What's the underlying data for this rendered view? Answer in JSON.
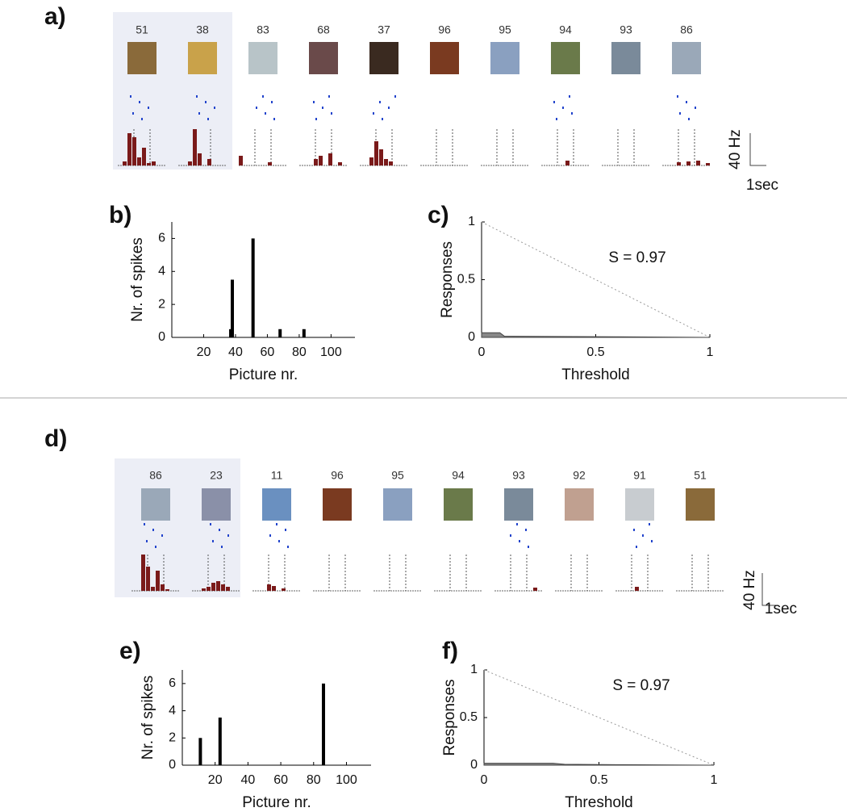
{
  "chart_data": [
    {
      "type": "raster",
      "label": "a)",
      "pictures": [
        51,
        38,
        83,
        68,
        37,
        96,
        95,
        94,
        93,
        86
      ],
      "histograms": [
        [
          0,
          5,
          40,
          35,
          10,
          22,
          3,
          5,
          0,
          0
        ],
        [
          0,
          0,
          5,
          45,
          15,
          0,
          8,
          0,
          0,
          0
        ],
        [
          12,
          0,
          0,
          0,
          0,
          0,
          4,
          0,
          0,
          0
        ],
        [
          0,
          0,
          0,
          8,
          12,
          0,
          15,
          0,
          4,
          0
        ],
        [
          0,
          0,
          10,
          30,
          20,
          8,
          5,
          0,
          0,
          0
        ],
        [
          0,
          0,
          0,
          0,
          0,
          0,
          0,
          0,
          0,
          0
        ],
        [
          0,
          0,
          0,
          0,
          0,
          0,
          0,
          0,
          0,
          0
        ],
        [
          0,
          0,
          0,
          0,
          0,
          6,
          0,
          0,
          0,
          0
        ],
        [
          0,
          0,
          0,
          0,
          0,
          0,
          0,
          0,
          0,
          0
        ],
        [
          0,
          0,
          0,
          4,
          0,
          5,
          0,
          6,
          0,
          3
        ]
      ],
      "scale_y": "40 Hz",
      "scale_x": "1sec",
      "color": "#7a1a1a",
      "highlight": [
        0,
        1
      ]
    },
    {
      "type": "bar",
      "label": "b)",
      "x": [
        37,
        38,
        51,
        68,
        83
      ],
      "values": [
        0.5,
        3.5,
        6,
        0.5,
        0.5
      ],
      "color": "#000000",
      "xlim": [
        0,
        115
      ],
      "xticks": [
        20,
        40,
        60,
        80,
        100
      ],
      "ylim": [
        0,
        7
      ],
      "yticks": [
        0,
        2,
        4,
        6
      ],
      "xlabel": "Picture nr.",
      "ylabel": "Nr. of spikes"
    },
    {
      "type": "area",
      "label": "c)",
      "x": [
        0,
        0.08,
        0.1,
        0.6,
        1
      ],
      "values": [
        0.04,
        0.04,
        0.01,
        0.005,
        0
      ],
      "color": "#888888",
      "diagonal": {
        "x": [
          0,
          1
        ],
        "values": [
          1,
          0
        ]
      },
      "xlim": [
        0,
        1
      ],
      "xticks": [
        0,
        0.5,
        1
      ],
      "ylim": [
        0,
        1
      ],
      "yticks": [
        0,
        0.5,
        1
      ],
      "xlabel": "Threshold",
      "ylabel": "Responses",
      "annotation": "S = 0.97"
    },
    {
      "type": "raster",
      "label": "d)",
      "pictures": [
        86,
        23,
        11,
        96,
        95,
        94,
        93,
        92,
        91,
        51
      ],
      "histograms": [
        [
          0,
          0,
          45,
          30,
          5,
          25,
          8,
          2,
          0,
          0
        ],
        [
          0,
          0,
          3,
          5,
          10,
          12,
          8,
          5,
          0,
          0
        ],
        [
          0,
          0,
          0,
          8,
          6,
          0,
          3,
          0,
          0,
          0
        ],
        [
          0,
          0,
          0,
          0,
          0,
          0,
          0,
          0,
          0,
          0
        ],
        [
          0,
          0,
          0,
          0,
          0,
          0,
          0,
          0,
          0,
          0
        ],
        [
          0,
          0,
          0,
          0,
          0,
          0,
          0,
          0,
          0,
          0
        ],
        [
          0,
          0,
          0,
          0,
          0,
          0,
          0,
          0,
          4,
          0
        ],
        [
          0,
          0,
          0,
          0,
          0,
          0,
          0,
          0,
          0,
          0
        ],
        [
          0,
          0,
          0,
          0,
          5,
          0,
          0,
          0,
          0,
          0
        ],
        [
          0,
          0,
          0,
          0,
          0,
          0,
          0,
          0,
          0,
          0
        ]
      ],
      "scale_y": "40 Hz",
      "scale_x": "1sec",
      "color": "#7a1a1a",
      "highlight": [
        0,
        1
      ]
    },
    {
      "type": "bar",
      "label": "e)",
      "x": [
        11,
        23,
        86
      ],
      "values": [
        2,
        3.5,
        6
      ],
      "color": "#000000",
      "xlim": [
        0,
        115
      ],
      "xticks": [
        20,
        40,
        60,
        80,
        100
      ],
      "ylim": [
        0,
        7
      ],
      "yticks": [
        0,
        2,
        4,
        6
      ],
      "xlabel": "Picture nr.",
      "ylabel": "Nr. of spikes"
    },
    {
      "type": "area",
      "label": "f)",
      "x": [
        0,
        0.3,
        0.35,
        0.6,
        1
      ],
      "values": [
        0.02,
        0.02,
        0.01,
        0.005,
        0
      ],
      "color": "#888888",
      "diagonal": {
        "x": [
          0,
          1
        ],
        "values": [
          1,
          0
        ]
      },
      "xlim": [
        0,
        1
      ],
      "xticks": [
        0,
        0.5,
        1
      ],
      "ylim": [
        0,
        1
      ],
      "yticks": [
        0,
        0.5,
        1
      ],
      "xlabel": "Threshold",
      "ylabel": "Responses",
      "annotation": "S = 0.97"
    }
  ]
}
